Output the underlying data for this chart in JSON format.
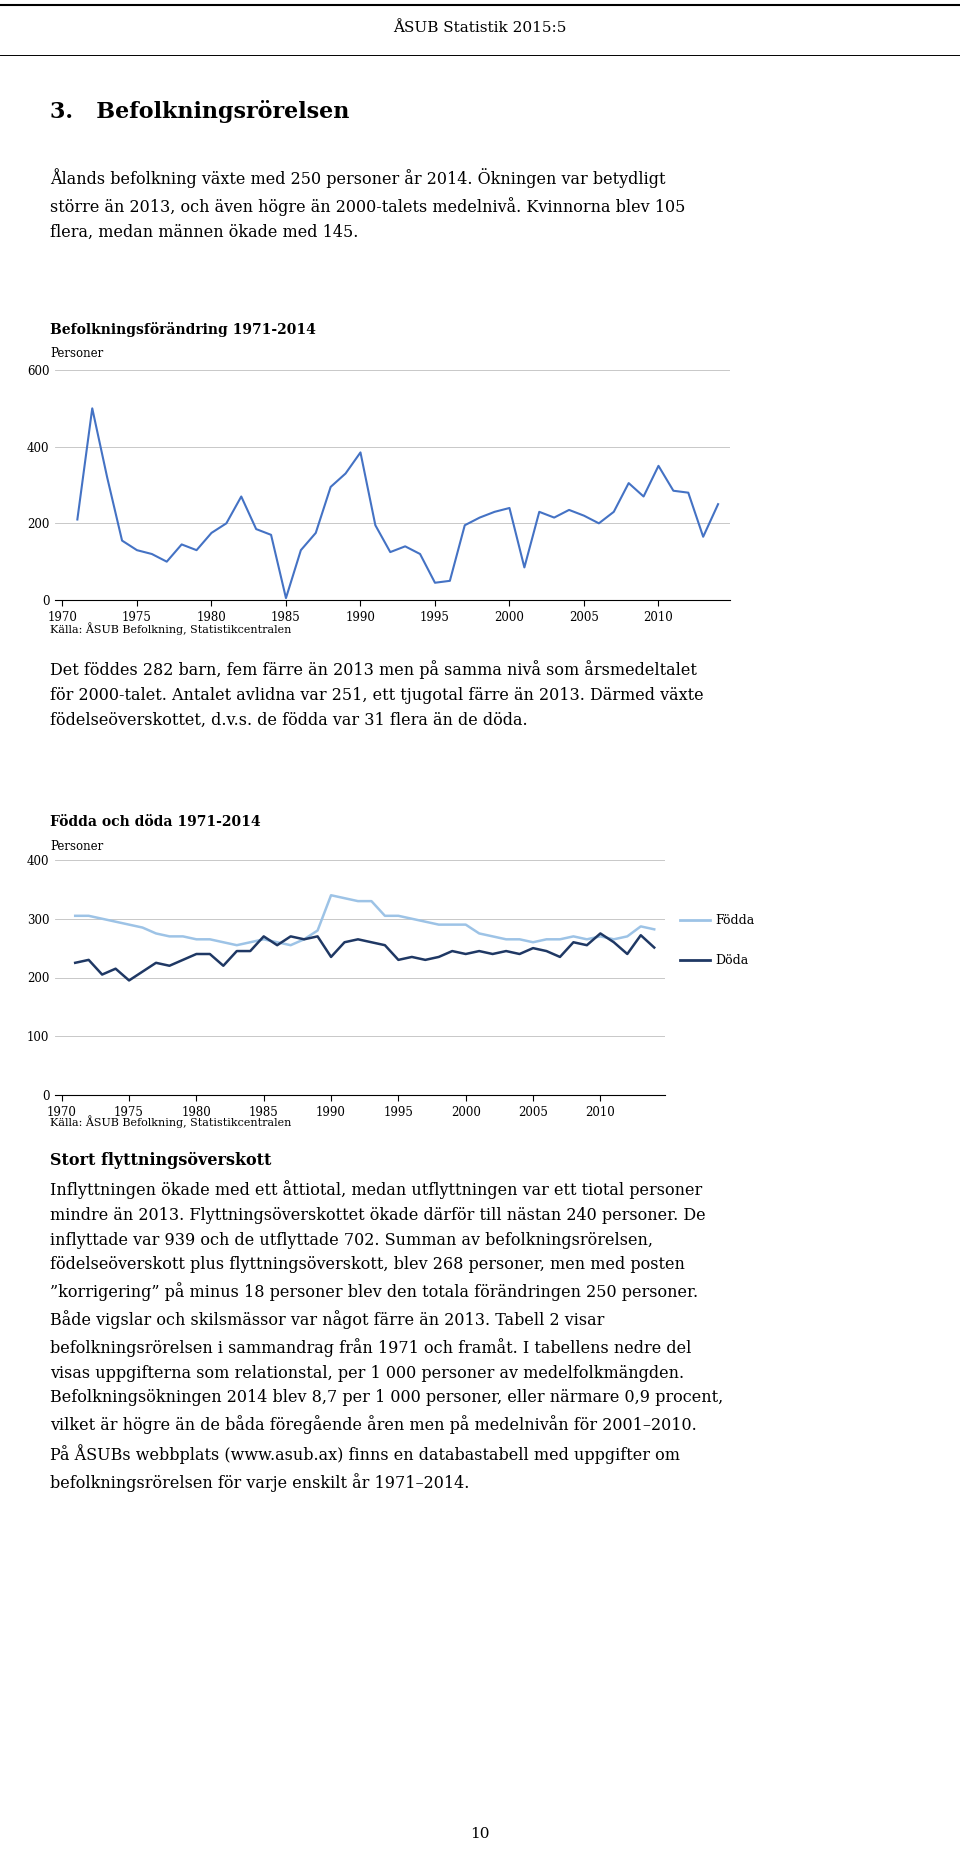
{
  "header_title": "ÅSUB Statistik 2015:5",
  "section_title": "3.   Befolkningsrörelsen",
  "para1": "Ålands befolkning växte med 250 personer år 2014. Ökningen var betydligt\nstörre än 2013, och även högre än 2000-talets medelnivå. Kvinnorna blev 105\nflera, medan männen ökade med 145.",
  "chart1_title": "Befolkningsförändring 1971-2014",
  "chart1_ylabel": "Personer",
  "chart1_source": "Källa: ÅSUB Befolkning, Statistikcentralen",
  "chart1_ylim": [
    0,
    600
  ],
  "chart1_yticks": [
    0,
    200,
    400,
    600
  ],
  "chart1_xticks": [
    1970,
    1975,
    1980,
    1985,
    1990,
    1995,
    2000,
    2005,
    2010
  ],
  "chart1_years": [
    1971,
    1972,
    1973,
    1974,
    1975,
    1976,
    1977,
    1978,
    1979,
    1980,
    1981,
    1982,
    1983,
    1984,
    1985,
    1986,
    1987,
    1988,
    1989,
    1990,
    1991,
    1992,
    1993,
    1994,
    1995,
    1996,
    1997,
    1998,
    1999,
    2000,
    2001,
    2002,
    2003,
    2004,
    2005,
    2006,
    2007,
    2008,
    2009,
    2010,
    2011,
    2012,
    2013,
    2014
  ],
  "chart1_values": [
    210,
    500,
    320,
    155,
    130,
    120,
    100,
    145,
    130,
    175,
    200,
    270,
    185,
    170,
    5,
    130,
    175,
    295,
    330,
    385,
    195,
    125,
    140,
    120,
    45,
    50,
    195,
    215,
    230,
    240,
    85,
    230,
    215,
    235,
    220,
    200,
    230,
    305,
    270,
    350,
    285,
    280,
    165,
    250
  ],
  "chart1_color": "#4472C4",
  "para2": "Det föddes 282 barn, fem färre än 2013 men på samma nivå som årsmedeltalet\nför 2000-talet. Antalet avlidna var 251, ett tjugotal färre än 2013. Därmed växte\nfödelseöverskottet, d.v.s. de födda var 31 flera än de döda.",
  "chart2_title": "Födda och döda 1971-2014",
  "chart2_ylabel": "Personer",
  "chart2_source": "Källa: ÅSUB Befolkning, Statistikcentralen",
  "chart2_ylim": [
    0,
    400
  ],
  "chart2_yticks": [
    0,
    100,
    200,
    300,
    400
  ],
  "chart2_xticks": [
    1970,
    1975,
    1980,
    1985,
    1990,
    1995,
    2000,
    2005,
    2010
  ],
  "chart2_years": [
    1971,
    1972,
    1973,
    1974,
    1975,
    1976,
    1977,
    1978,
    1979,
    1980,
    1981,
    1982,
    1983,
    1984,
    1985,
    1986,
    1987,
    1988,
    1989,
    1990,
    1991,
    1992,
    1993,
    1994,
    1995,
    1996,
    1997,
    1998,
    1999,
    2000,
    2001,
    2002,
    2003,
    2004,
    2005,
    2006,
    2007,
    2008,
    2009,
    2010,
    2011,
    2012,
    2013,
    2014
  ],
  "chart2_fodda": [
    305,
    305,
    300,
    295,
    290,
    285,
    275,
    270,
    270,
    265,
    265,
    260,
    255,
    260,
    265,
    260,
    255,
    265,
    280,
    340,
    335,
    330,
    330,
    305,
    305,
    300,
    295,
    290,
    290,
    290,
    275,
    270,
    265,
    265,
    260,
    265,
    265,
    270,
    265,
    270,
    265,
    270,
    287,
    282
  ],
  "chart2_doda": [
    225,
    230,
    205,
    215,
    195,
    210,
    225,
    220,
    230,
    240,
    240,
    220,
    245,
    245,
    270,
    255,
    270,
    265,
    270,
    235,
    260,
    265,
    260,
    255,
    230,
    235,
    230,
    235,
    245,
    240,
    245,
    240,
    245,
    240,
    250,
    245,
    235,
    260,
    255,
    275,
    260,
    240,
    272,
    251
  ],
  "chart2_color_fodda": "#9DC3E6",
  "chart2_color_doda": "#1F3864",
  "legend_fodda": "Födda",
  "legend_doda": "Döda",
  "para3_bold": "Stort flyttningsöverskott",
  "para3": "Inflyttningen ökade med ett åttiotal, medan utflyttningen var ett tiotal personer\nmindre än 2013. Flyttningsöverskottet ökade därför till nästan 240 personer. De\ninflyttade var 939 och de utflyttade 702. Summan av befolkningsrörelsen,\nfödelseöverskott plus flyttningsöverskott, blev 268 personer, men med posten\n”korrigering” på minus 18 personer blev den totala förändringen 250 personer.\nBåde vigslar och skilsmässor var något färre än 2013. Tabell 2 visar\nbefolkningsrörelsen i sammandrag från 1971 och framåt. I tabellens nedre del\nvisas uppgifterna som relationstal, per 1 000 personer av medelfolkmängden.\nBefolkningsökningen 2014 blev 8,7 per 1 000 personer, eller närmare 0,9 procent,\nvilket är högre än de båda föregående åren men på medelnivån för 2001–2010.\nPå ÅSUBs webbplats (www.asub.ax) finns en databastabell med uppgifter om\nbefolkningsrörelsen för varje enskilt år 1971–2014.",
  "page_number": "10",
  "bg": "#ffffff",
  "text_color": "#000000",
  "grid_color": "#BFBFBF"
}
